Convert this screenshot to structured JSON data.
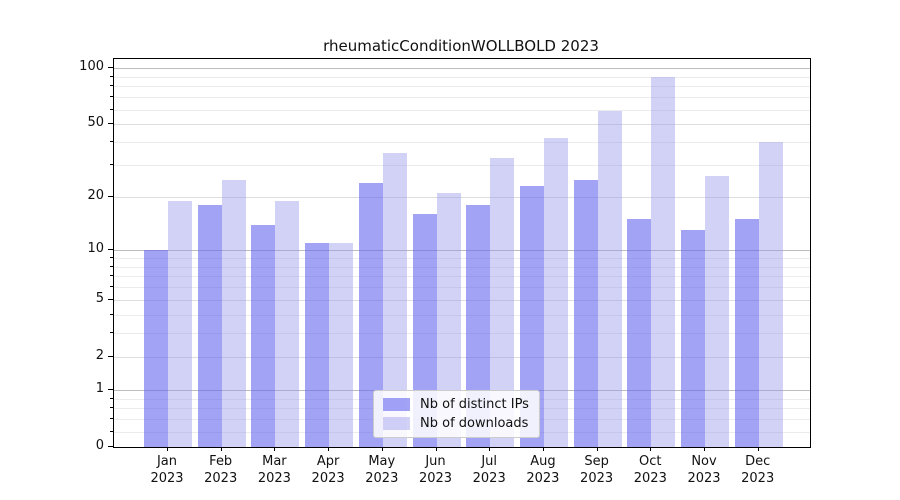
{
  "chart_data": {
    "type": "bar",
    "title": "rheumaticConditionWOLLBOLD 2023",
    "categories": [
      "Jan",
      "Feb",
      "Mar",
      "Apr",
      "May",
      "Jun",
      "Jul",
      "Aug",
      "Sep",
      "Oct",
      "Nov",
      "Dec"
    ],
    "category_year_line": "2023",
    "series": [
      {
        "name": "Nb of distinct IPs",
        "color": "rgba(102,102,240,0.60)",
        "values": [
          10,
          18,
          14,
          11,
          24,
          16,
          18,
          23,
          25,
          15,
          13,
          15
        ]
      },
      {
        "name": "Nb of downloads",
        "color": "rgba(148,148,235,0.42)",
        "values": [
          19,
          25,
          19,
          11,
          35,
          21,
          33,
          42,
          59,
          90,
          26,
          40
        ]
      }
    ],
    "yscale": "log1p",
    "ylim": [
      0,
      100
    ],
    "ytick_labels": [
      "100",
      "50",
      "20",
      "10",
      "5",
      "2",
      "1",
      "0"
    ],
    "ytick_values": [
      100,
      50,
      20,
      10,
      5,
      2,
      1,
      0
    ],
    "grid": "horizontal, major and minor",
    "legend_position": "lower center, inside axes"
  },
  "colors": {
    "background": "#ffffff",
    "bar_ips": "rgba(102,102,240,0.60)",
    "bar_downloads": "rgba(148,148,235,0.42)",
    "grid_major": "#bdbdbd",
    "grid_mid": "#dedede",
    "grid_minor": "#ececec",
    "spine": "#000000",
    "text": "#111111"
  }
}
